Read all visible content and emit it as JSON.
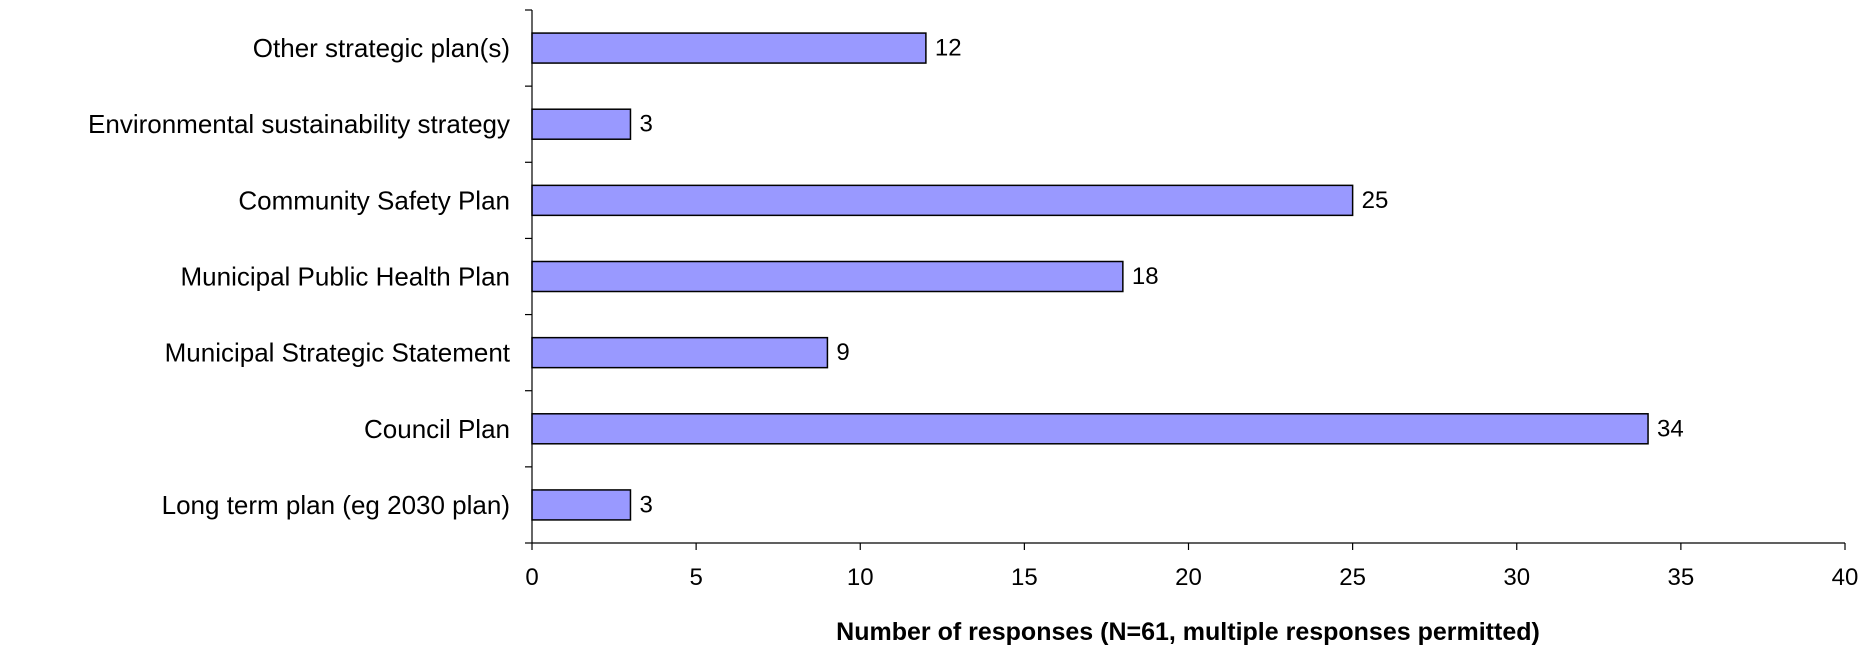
{
  "chart_data": {
    "type": "bar",
    "orientation": "horizontal",
    "categories": [
      "Other strategic plan(s)",
      "Environmental sustainability strategy",
      "Community Safety Plan",
      "Municipal Public Health Plan",
      "Municipal Strategic Statement",
      "Council Plan",
      "Long term plan (eg 2030 plan)"
    ],
    "values": [
      12,
      3,
      25,
      18,
      9,
      34,
      3
    ],
    "title": "",
    "xlabel": "Number of responses (N=61, multiple responses permitted)",
    "ylabel": "",
    "xlim": [
      0,
      40
    ],
    "xticks": [
      0,
      5,
      10,
      15,
      20,
      25,
      30,
      35,
      40
    ],
    "grid": false,
    "legend": "none",
    "bar_color": "#9999FF",
    "bar_edge_color": "#000000"
  }
}
